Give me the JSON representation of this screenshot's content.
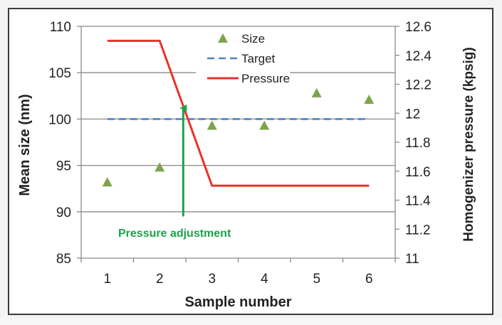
{
  "chart_data": {
    "type": "line",
    "title": "",
    "xlabel": "Sample number",
    "ylabel": "Mean size (nm)",
    "y2label": "Homogenizer pressure (kpsig)",
    "xlim": [
      0.5,
      6.5
    ],
    "ylim": [
      85,
      110
    ],
    "y2lim": [
      11,
      12.6
    ],
    "x_ticks": [
      "1",
      "2",
      "3",
      "4",
      "5",
      "6"
    ],
    "y_ticks": [
      "85",
      "90",
      "95",
      "100",
      "105",
      "110"
    ],
    "y2_ticks": [
      "11",
      "11.2",
      "11.4",
      "11.6",
      "11.8",
      "12",
      "12.2",
      "12.4",
      "12.6"
    ],
    "grid": true,
    "legend_position": "top-center",
    "series": [
      {
        "name": "Size",
        "kind": "scatter",
        "marker": "triangle",
        "color": "#7ea34b",
        "axis": "left",
        "x": [
          1,
          2,
          3,
          4,
          5,
          6
        ],
        "y": [
          93.2,
          94.8,
          99.3,
          99.3,
          102.8,
          102.1
        ]
      },
      {
        "name": "Target",
        "kind": "line",
        "style": "dashed",
        "color": "#4f81bd",
        "axis": "left",
        "x": [
          1,
          6
        ],
        "y": [
          100,
          100
        ]
      },
      {
        "name": "Pressure",
        "kind": "line",
        "style": "solid",
        "color": "#e8322d",
        "axis": "right",
        "x": [
          1,
          2,
          3,
          4,
          5,
          6
        ],
        "y": [
          12.5,
          12.5,
          11.5,
          11.5,
          11.5,
          11.5
        ]
      }
    ],
    "annotations": [
      {
        "text": "Pressure adjustment",
        "color": "#1aa34a",
        "arrow_from": {
          "x": 2.45,
          "y": 89.5
        },
        "arrow_to": {
          "x": 2.45,
          "y": 101.8
        }
      }
    ]
  }
}
